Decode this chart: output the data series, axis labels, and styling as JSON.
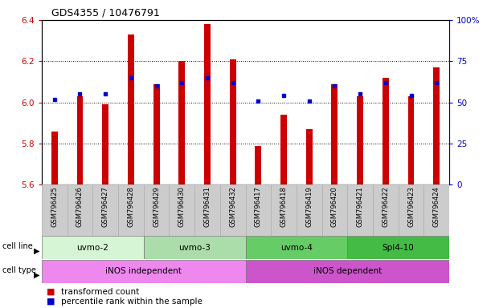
{
  "title": "GDS4355 / 10476791",
  "samples": [
    "GSM796425",
    "GSM796426",
    "GSM796427",
    "GSM796428",
    "GSM796429",
    "GSM796430",
    "GSM796431",
    "GSM796432",
    "GSM796417",
    "GSM796418",
    "GSM796419",
    "GSM796420",
    "GSM796421",
    "GSM796422",
    "GSM796423",
    "GSM796424"
  ],
  "transformed_count": [
    5.86,
    6.03,
    5.99,
    6.33,
    6.09,
    6.2,
    6.38,
    6.21,
    5.79,
    5.94,
    5.87,
    6.09,
    6.03,
    6.12,
    6.03,
    6.17
  ],
  "percentile_rank": [
    52,
    55,
    55,
    65,
    60,
    62,
    65,
    62,
    51,
    54,
    51,
    60,
    55,
    62,
    54,
    62
  ],
  "ylim_left": [
    5.6,
    6.4
  ],
  "ylim_right": [
    0,
    100
  ],
  "yticks_left": [
    5.6,
    5.8,
    6.0,
    6.2,
    6.4
  ],
  "yticks_right": [
    0,
    25,
    50,
    75,
    100
  ],
  "ytick_labels_right": [
    "0",
    "25",
    "50",
    "75",
    "100%"
  ],
  "cell_line_groups": [
    {
      "label": "uvmo-2",
      "start": 0,
      "end": 4,
      "color": "#d5f5d5"
    },
    {
      "label": "uvmo-3",
      "start": 4,
      "end": 8,
      "color": "#aaddaa"
    },
    {
      "label": "uvmo-4",
      "start": 8,
      "end": 12,
      "color": "#66cc66"
    },
    {
      "label": "Spl4-10",
      "start": 12,
      "end": 16,
      "color": "#44bb44"
    }
  ],
  "cell_type_groups": [
    {
      "label": "iNOS independent",
      "start": 0,
      "end": 8,
      "color": "#ee88ee"
    },
    {
      "label": "iNOS dependent",
      "start": 8,
      "end": 16,
      "color": "#cc55cc"
    }
  ],
  "bar_color": "#cc0000",
  "dot_color": "#0000cc",
  "grid_color": "#000000",
  "label_color_left": "#cc0000",
  "label_color_right": "#0000cc",
  "legend_items": [
    {
      "color": "#cc0000",
      "label": "transformed count"
    },
    {
      "color": "#0000cc",
      "label": "percentile rank within the sample"
    }
  ],
  "sample_bg_color": "#cccccc"
}
